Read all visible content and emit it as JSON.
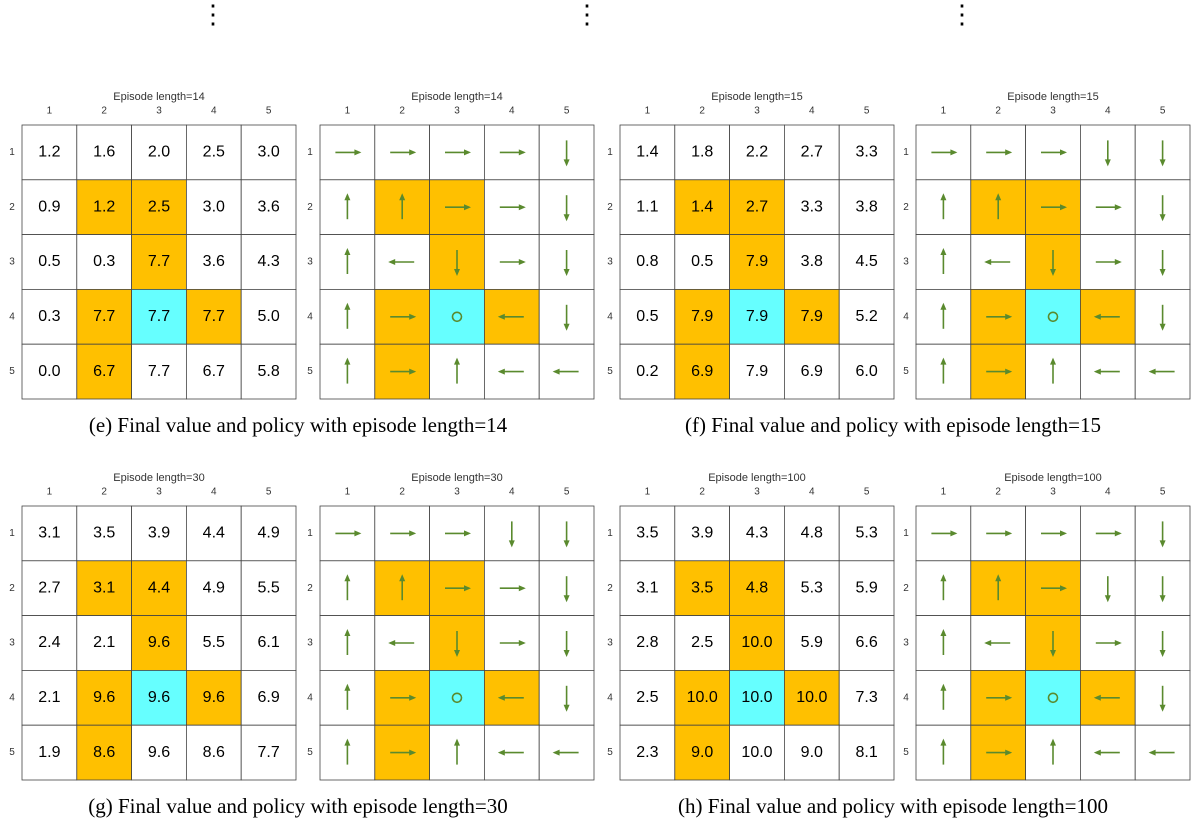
{
  "continuation": "⋮",
  "axis_labels": [
    "1",
    "2",
    "3",
    "4",
    "5"
  ],
  "panels": [
    {
      "caption": "(e) Final value and policy with episode length=14",
      "value_grid": {
        "title": "Episode length=14",
        "values": [
          [
            "1.2",
            "1.6",
            "2.0",
            "2.5",
            "3.0"
          ],
          [
            "0.9",
            "1.2",
            "2.5",
            "3.0",
            "3.6"
          ],
          [
            "0.5",
            "0.3",
            "7.7",
            "3.6",
            "4.3"
          ],
          [
            "0.3",
            "7.7",
            "7.7",
            "7.7",
            "5.0"
          ],
          [
            "0.0",
            "6.7",
            "7.7",
            "6.7",
            "5.8"
          ]
        ]
      },
      "policy_grid": {
        "title": "Episode length=14"
      }
    },
    {
      "caption": "(f) Final value and policy with episode length=15",
      "value_grid": {
        "title": "Episode length=15",
        "values": [
          [
            "1.4",
            "1.8",
            "2.2",
            "2.7",
            "3.3"
          ],
          [
            "1.1",
            "1.4",
            "2.7",
            "3.3",
            "3.8"
          ],
          [
            "0.8",
            "0.5",
            "7.9",
            "3.8",
            "4.5"
          ],
          [
            "0.5",
            "7.9",
            "7.9",
            "7.9",
            "5.2"
          ],
          [
            "0.2",
            "6.9",
            "7.9",
            "6.9",
            "6.0"
          ]
        ]
      },
      "policy_grid": {
        "title": "Episode length=15"
      }
    },
    {
      "caption": "(g) Final value and policy with episode length=30",
      "value_grid": {
        "title": "Episode length=30",
        "values": [
          [
            "3.1",
            "3.5",
            "3.9",
            "4.4",
            "4.9"
          ],
          [
            "2.7",
            "3.1",
            "4.4",
            "4.9",
            "5.5"
          ],
          [
            "2.4",
            "2.1",
            "9.6",
            "5.5",
            "6.1"
          ],
          [
            "2.1",
            "9.6",
            "9.6",
            "9.6",
            "6.9"
          ],
          [
            "1.9",
            "8.6",
            "9.6",
            "8.6",
            "7.7"
          ]
        ]
      },
      "policy_grid": {
        "title": "Episode length=30"
      }
    },
    {
      "caption": "(h) Final value and policy with episode length=100",
      "value_grid": {
        "title": "Episode length=100",
        "values": [
          [
            "3.5",
            "3.9",
            "4.3",
            "4.8",
            "5.3"
          ],
          [
            "3.1",
            "3.5",
            "4.8",
            "5.3",
            "5.9"
          ],
          [
            "2.8",
            "2.5",
            "10.0",
            "5.9",
            "6.6"
          ],
          [
            "2.5",
            "10.0",
            "10.0",
            "10.0",
            "7.3"
          ],
          [
            "2.3",
            "9.0",
            "10.0",
            "9.0",
            "8.1"
          ]
        ]
      },
      "policy_grid": {
        "title": "Episode length=100"
      }
    }
  ]
}
